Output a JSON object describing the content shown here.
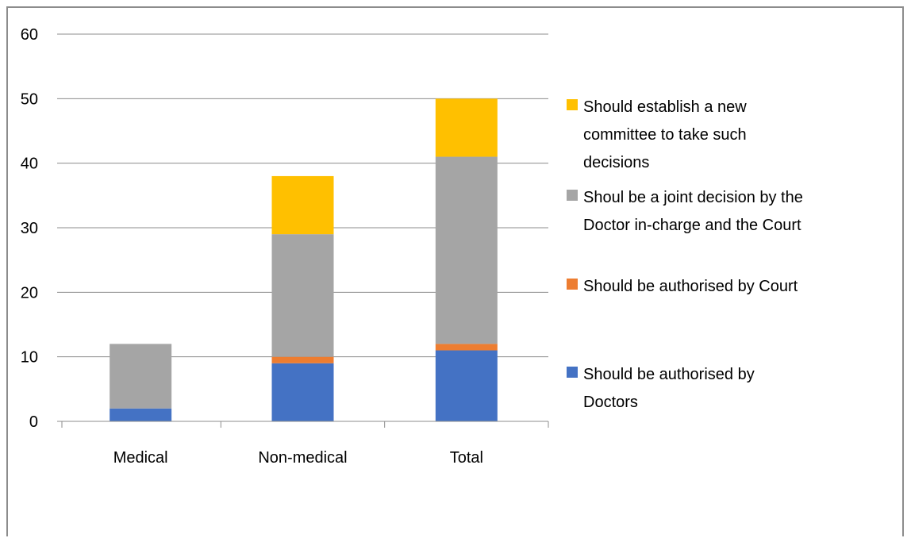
{
  "chart_data": {
    "type": "bar",
    "stacked": true,
    "title": "",
    "xlabel": "",
    "ylabel": "",
    "categories": [
      "Medical",
      "Non-medical",
      "Total"
    ],
    "ylim": [
      0,
      60
    ],
    "yticks": [
      0,
      10,
      20,
      30,
      40,
      50,
      60
    ],
    "grid": true,
    "legend_position": "right",
    "series": [
      {
        "name": "Should be authorised by Doctors",
        "legend_lines": [
          "Should be authorised by",
          "Doctors"
        ],
        "color": "#4472C4",
        "values": [
          2,
          9,
          11
        ]
      },
      {
        "name": "Should be authorised by Court",
        "legend_lines": [
          "Should be authorised by Court"
        ],
        "color": "#ED7D31",
        "values": [
          0,
          1,
          1
        ]
      },
      {
        "name": "Shoul be a joint decision by the Doctor in-charge and the Court",
        "legend_lines": [
          "Shoul be a joint decision by the",
          "Doctor in-charge and the Court"
        ],
        "color": "#A5A5A5",
        "values": [
          10,
          19,
          29
        ]
      },
      {
        "name": "Should establish a new committee to take such decisions",
        "legend_lines": [
          "Should establish a new",
          "committee to take such",
          "decisions"
        ],
        "color": "#FFC000",
        "values": [
          0,
          9,
          9
        ]
      }
    ]
  }
}
